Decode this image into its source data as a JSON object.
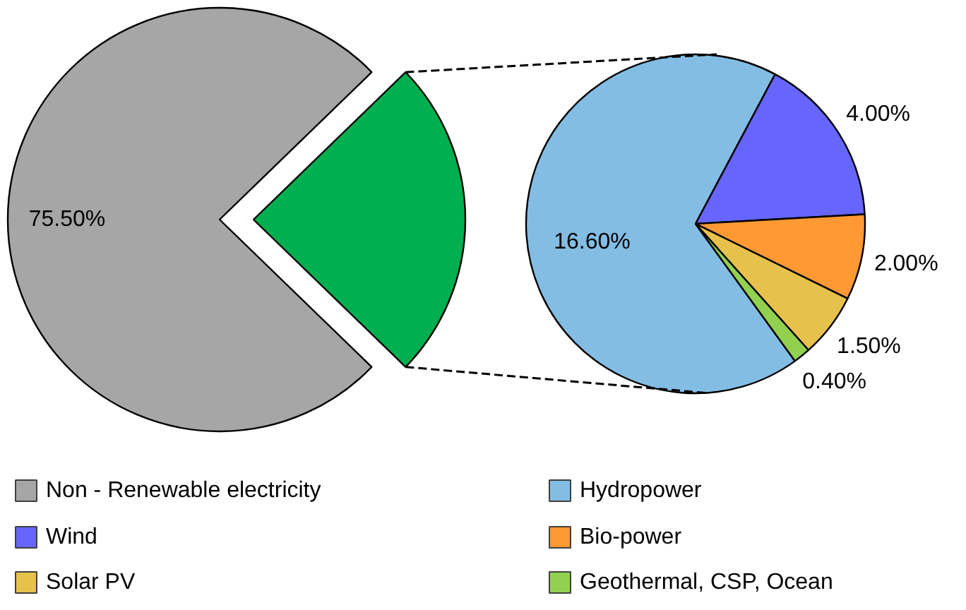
{
  "chart_data": [
    {
      "type": "pie",
      "categories": [
        "Non - Renewable electricity",
        null
      ],
      "values": [
        75.5,
        24.5
      ],
      "colors": [
        "#a6a6a6",
        "#00b050"
      ],
      "value_labels": [
        "75.50%",
        null
      ],
      "legend": "bottom"
    },
    {
      "type": "pie",
      "categories": [
        "Hydropower",
        "Wind",
        "Bio-power",
        "Solar PV",
        "Geothermal, CSP, Ocean"
      ],
      "values": [
        16.6,
        4.0,
        2.0,
        1.5,
        0.4
      ],
      "colors": [
        "#83bde3",
        "#6666ff",
        "#ff9933",
        "#e6c24d",
        "#92d050"
      ],
      "value_labels": [
        "16.60%",
        "4.00%",
        "2.00%",
        "1.50%",
        "0.40%"
      ],
      "legend": "bottom"
    }
  ]
}
